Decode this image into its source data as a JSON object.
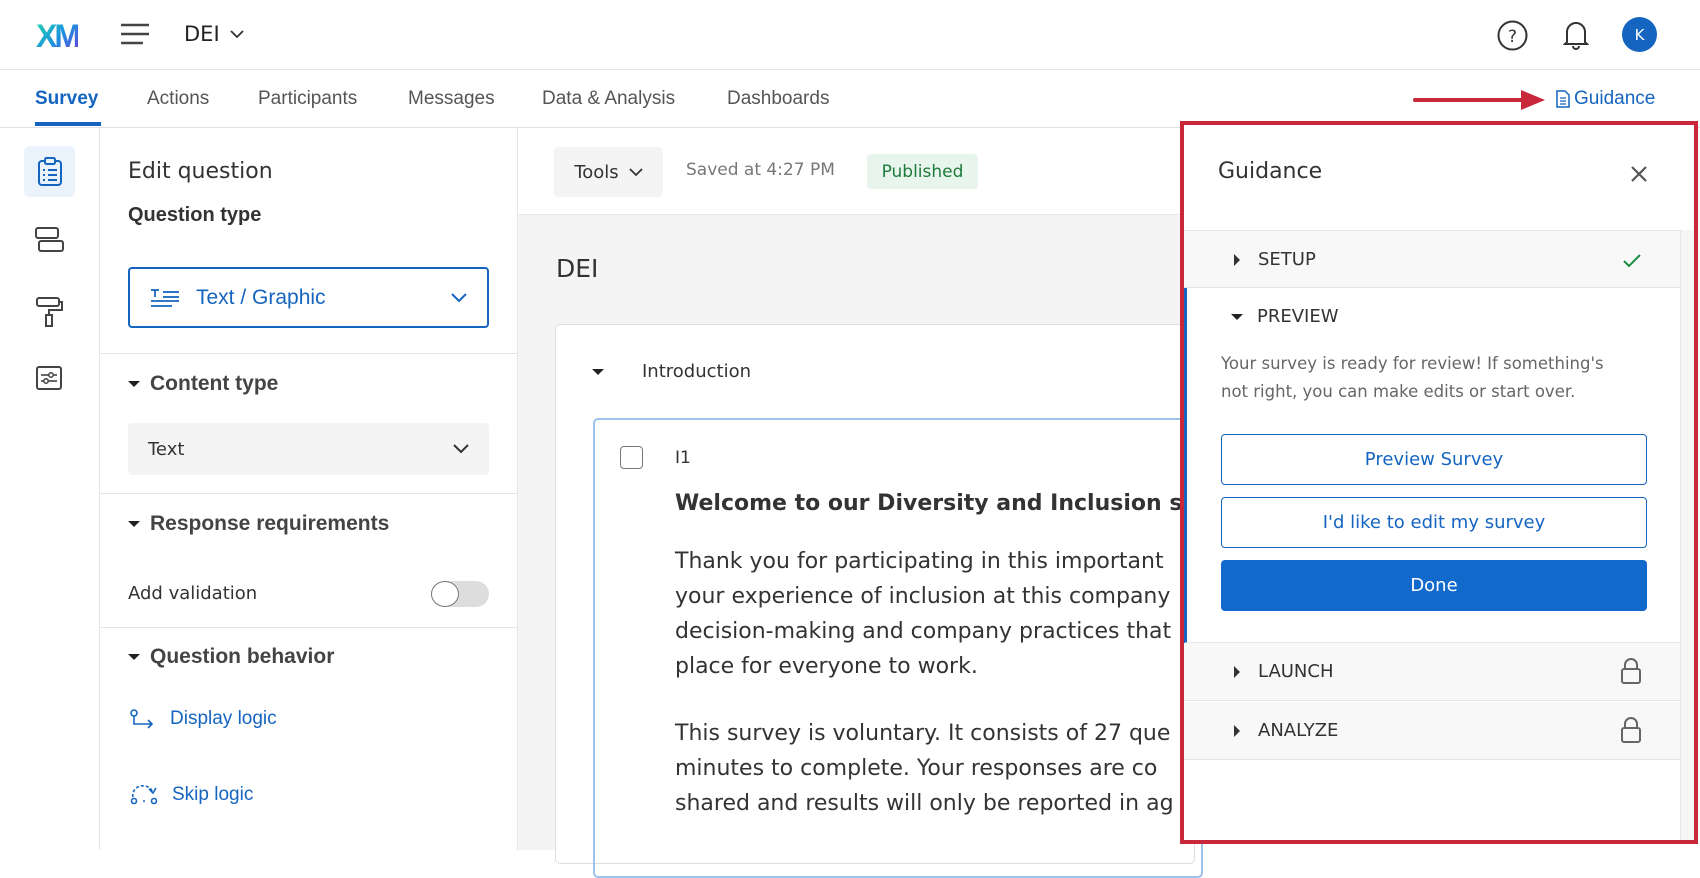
{
  "header": {
    "logo": "XM",
    "project": "DEI",
    "avatar_initial": "K"
  },
  "tabs": [
    {
      "label": "Survey",
      "active": true
    },
    {
      "label": "Actions"
    },
    {
      "label": "Participants"
    },
    {
      "label": "Messages"
    },
    {
      "label": "Data & Analysis"
    },
    {
      "label": "Dashboards"
    }
  ],
  "guidance_link": "Guidance",
  "edit_panel": {
    "title": "Edit question",
    "question_type_label": "Question type",
    "question_type_value": "Text / Graphic",
    "content_type_label": "Content type",
    "content_type_value": "Text",
    "response_requirements_label": "Response requirements",
    "add_validation_label": "Add validation",
    "add_validation_on": false,
    "question_behavior_label": "Question behavior",
    "display_logic": "Display logic",
    "skip_logic": "Skip logic"
  },
  "toolbar": {
    "tools": "Tools",
    "saved": "Saved at 4:27 PM",
    "status": "Published"
  },
  "survey": {
    "title": "DEI",
    "block": "Introduction",
    "question_id": "I1",
    "heading": "Welcome to our Diversity and Inclusion s",
    "p1": [
      "Thank you for participating in this important",
      "your experience of inclusion at this company",
      "decision-making and company practices that",
      "place for everyone to work."
    ],
    "p2": [
      "This survey is voluntary. It consists of 27 que",
      "minutes to complete. Your responses are co",
      "shared and results will only be reported in ag"
    ]
  },
  "guidance": {
    "title": "Guidance",
    "setup": "SETUP",
    "preview": "PREVIEW",
    "preview_text": [
      "Your survey is ready for review! If something's",
      "not right, you can make edits or start over."
    ],
    "preview_button": "Preview Survey",
    "edit_button": "I'd like to edit my survey",
    "done_button": "Done",
    "launch": "LAUNCH",
    "analyze": "ANALYZE"
  },
  "colors": {
    "accent": "#1565c0",
    "annotation": "#c8283a",
    "published_bg": "#e8f5ec",
    "published_text": "#1e7a3c"
  }
}
